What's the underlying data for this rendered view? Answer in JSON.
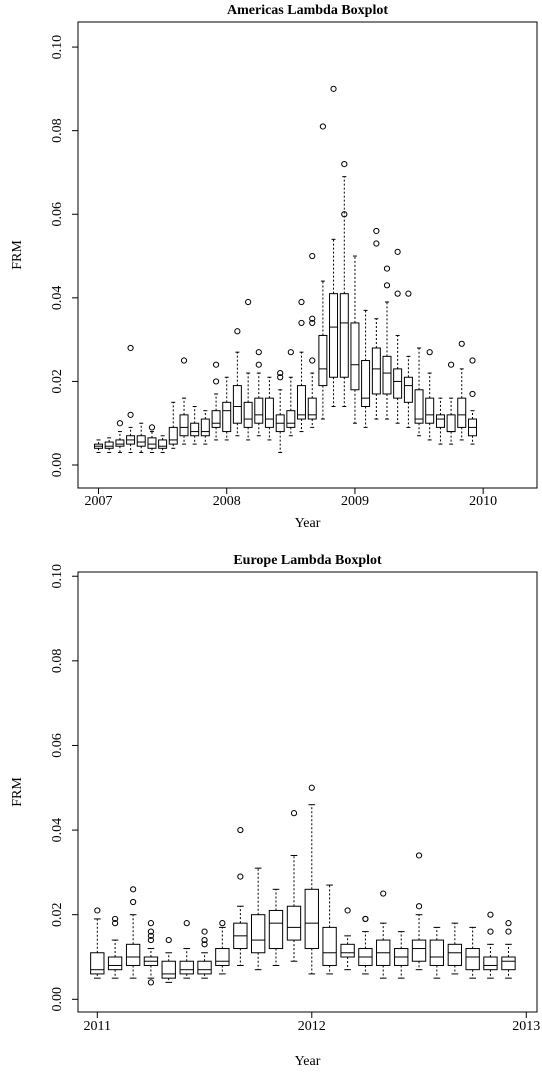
{
  "chart_data": [
    {
      "type": "box",
      "title": "Americas Lambda Boxplot",
      "xlabel": "Year",
      "ylabel": "FRM",
      "x": [
        2007,
        2007.083,
        2007.167,
        2007.25,
        2007.333,
        2007.417,
        2007.5,
        2007.583,
        2007.667,
        2007.75,
        2007.833,
        2007.917,
        2008,
        2008.083,
        2008.167,
        2008.25,
        2008.333,
        2008.417,
        2008.5,
        2008.583,
        2008.667,
        2008.75,
        2008.833,
        2008.917,
        2009,
        2009.083,
        2009.167,
        2009.25,
        2009.333,
        2009.417,
        2009.5,
        2009.583,
        2009.667,
        2009.75,
        2009.833,
        2009.917
      ],
      "low": [
        0.003,
        0.003,
        0.003,
        0.003,
        0.003,
        0.003,
        0.003,
        0.004,
        0.005,
        0.005,
        0.005,
        0.006,
        0.006,
        0.007,
        0.006,
        0.007,
        0.006,
        0.003,
        0.007,
        0.008,
        0.009,
        0.011,
        0.014,
        0.014,
        0.01,
        0.009,
        0.011,
        0.011,
        0.01,
        0.009,
        0.007,
        0.006,
        0.005,
        0.005,
        0.006,
        0.005
      ],
      "q1": [
        0.004,
        0.004,
        0.0045,
        0.005,
        0.0045,
        0.004,
        0.004,
        0.005,
        0.007,
        0.007,
        0.007,
        0.009,
        0.008,
        0.01,
        0.009,
        0.01,
        0.009,
        0.008,
        0.009,
        0.011,
        0.011,
        0.019,
        0.021,
        0.021,
        0.018,
        0.014,
        0.017,
        0.017,
        0.016,
        0.015,
        0.01,
        0.01,
        0.009,
        0.008,
        0.009,
        0.007
      ],
      "median": [
        0.0045,
        0.0045,
        0.005,
        0.006,
        0.0055,
        0.005,
        0.0045,
        0.006,
        0.009,
        0.008,
        0.008,
        0.01,
        0.013,
        0.014,
        0.011,
        0.012,
        0.011,
        0.01,
        0.01,
        0.012,
        0.012,
        0.023,
        0.033,
        0.034,
        0.024,
        0.016,
        0.023,
        0.022,
        0.02,
        0.019,
        0.011,
        0.012,
        0.011,
        0.008,
        0.012,
        0.009
      ],
      "q3": [
        0.005,
        0.0055,
        0.006,
        0.007,
        0.007,
        0.0065,
        0.006,
        0.009,
        0.012,
        0.01,
        0.011,
        0.013,
        0.015,
        0.019,
        0.015,
        0.016,
        0.016,
        0.012,
        0.013,
        0.019,
        0.016,
        0.031,
        0.041,
        0.041,
        0.034,
        0.025,
        0.028,
        0.026,
        0.023,
        0.021,
        0.018,
        0.016,
        0.012,
        0.012,
        0.016,
        0.011
      ],
      "high": [
        0.006,
        0.0065,
        0.008,
        0.009,
        0.01,
        0.008,
        0.007,
        0.015,
        0.016,
        0.014,
        0.013,
        0.017,
        0.021,
        0.027,
        0.022,
        0.022,
        0.021,
        0.018,
        0.021,
        0.027,
        0.022,
        0.044,
        0.054,
        0.069,
        0.05,
        0.037,
        0.035,
        0.039,
        0.031,
        0.026,
        0.028,
        0.022,
        0.016,
        0.016,
        0.023,
        0.013
      ],
      "outliers": [
        [],
        [],
        [
          0.01
        ],
        [
          0.012,
          0.028
        ],
        [],
        [
          0.009
        ],
        [],
        [],
        [
          0.025
        ],
        [],
        [],
        [
          0.02,
          0.024
        ],
        [],
        [
          0.032
        ],
        [
          0.039
        ],
        [
          0.024,
          0.027
        ],
        [],
        [
          0.021,
          0.022
        ],
        [
          0.027
        ],
        [
          0.034,
          0.039
        ],
        [
          0.025,
          0.034,
          0.035,
          0.05
        ],
        [
          0.081
        ],
        [
          0.09
        ],
        [
          0.06,
          0.072
        ],
        [],
        [],
        [
          0.053,
          0.056
        ],
        [
          0.043,
          0.047
        ],
        [
          0.041,
          0.051
        ],
        [
          0.041
        ],
        [],
        [
          0.027
        ],
        [],
        [
          0.024
        ],
        [
          0.029
        ],
        [
          0.017,
          0.025
        ]
      ],
      "xlim": [
        2006.84,
        2010.42
      ],
      "ylim": [
        -0.0055,
        0.106
      ],
      "xticks": [
        2007,
        2008,
        2009,
        2010
      ],
      "yticks": [
        {
          "value": 0,
          "label": "0.00"
        },
        0.02,
        0.04,
        0.06,
        0.08,
        {
          "value": 0.1,
          "label": "0.10"
        }
      ]
    },
    {
      "type": "box",
      "title": "Europe Lambda Boxplot",
      "xlabel": "Year",
      "ylabel": "FRM",
      "x": [
        2011,
        2011.083,
        2011.167,
        2011.25,
        2011.333,
        2011.417,
        2011.5,
        2011.583,
        2011.667,
        2011.75,
        2011.833,
        2011.917,
        2012,
        2012.083,
        2012.167,
        2012.25,
        2012.333,
        2012.417,
        2012.5,
        2012.583,
        2012.667,
        2012.75,
        2012.833,
        2012.917
      ],
      "low": [
        0.005,
        0.005,
        0.005,
        0.005,
        0.004,
        0.005,
        0.005,
        0.006,
        0.008,
        0.007,
        0.008,
        0.009,
        0.006,
        0.006,
        0.007,
        0.006,
        0.005,
        0.005,
        0.007,
        0.005,
        0.006,
        0.005,
        0.005,
        0.005
      ],
      "q1": [
        0.006,
        0.007,
        0.008,
        0.008,
        0.005,
        0.006,
        0.006,
        0.008,
        0.012,
        0.011,
        0.012,
        0.014,
        0.012,
        0.008,
        0.01,
        0.008,
        0.008,
        0.008,
        0.009,
        0.008,
        0.008,
        0.007,
        0.007,
        0.007
      ],
      "median": [
        0.007,
        0.008,
        0.01,
        0.009,
        0.006,
        0.007,
        0.007,
        0.009,
        0.015,
        0.014,
        0.018,
        0.017,
        0.018,
        0.011,
        0.011,
        0.01,
        0.011,
        0.01,
        0.012,
        0.01,
        0.011,
        0.01,
        0.008,
        0.009
      ],
      "q3": [
        0.011,
        0.01,
        0.013,
        0.01,
        0.009,
        0.009,
        0.009,
        0.012,
        0.018,
        0.02,
        0.021,
        0.022,
        0.026,
        0.017,
        0.013,
        0.012,
        0.014,
        0.012,
        0.014,
        0.014,
        0.013,
        0.012,
        0.01,
        0.01
      ],
      "high": [
        0.019,
        0.014,
        0.02,
        0.012,
        0.011,
        0.012,
        0.011,
        0.017,
        0.022,
        0.031,
        0.026,
        0.034,
        0.046,
        0.027,
        0.015,
        0.016,
        0.018,
        0.016,
        0.02,
        0.017,
        0.018,
        0.017,
        0.013,
        0.013
      ],
      "outliers": [
        [
          0.021
        ],
        [
          0.018,
          0.019
        ],
        [
          0.023,
          0.026
        ],
        [
          0.004,
          0.014,
          0.015,
          0.016,
          0.018
        ],
        [
          0.014
        ],
        [
          0.018
        ],
        [
          0.013,
          0.014,
          0.016
        ],
        [
          0.018
        ],
        [
          0.029,
          0.04
        ],
        [],
        [],
        [
          0.044
        ],
        [
          0.05
        ],
        [],
        [
          0.021
        ],
        [
          0.019,
          0.019
        ],
        [
          0.025
        ],
        [],
        [
          0.022,
          0.034
        ],
        [],
        [],
        [],
        [
          0.016,
          0.02
        ],
        [
          0.016,
          0.018
        ]
      ],
      "xlim": [
        2010.91,
        2013.05
      ],
      "ylim": [
        -0.003,
        0.101
      ],
      "xticks": [
        2011,
        2012,
        2013
      ],
      "yticks": [
        {
          "value": 0,
          "label": "0.00"
        },
        0.02,
        0.04,
        0.06,
        0.08,
        {
          "value": 0.1,
          "label": "0.10"
        }
      ]
    }
  ]
}
